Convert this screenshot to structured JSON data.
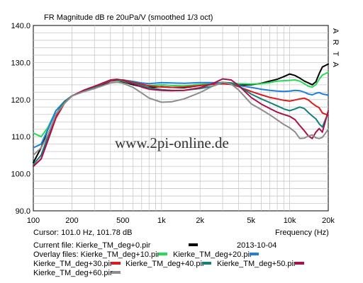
{
  "chart_data": {
    "type": "line",
    "title": "FR Magnitude dB re 20uPa/V (smoothed 1/3 oct)",
    "xlabel": "Frequency (Hz)",
    "ylabel": "",
    "xscale": "log",
    "xlim": [
      100,
      20000
    ],
    "ylim": [
      90,
      140
    ],
    "x_ticks": [
      {
        "v": 100,
        "label": "100"
      },
      {
        "v": 200,
        "label": "200"
      },
      {
        "v": 500,
        "label": "500"
      },
      {
        "v": 1000,
        "label": "1k"
      },
      {
        "v": 2000,
        "label": "2k"
      },
      {
        "v": 5000,
        "label": "5k"
      },
      {
        "v": 10000,
        "label": "10k"
      },
      {
        "v": 20000,
        "label": "20k"
      }
    ],
    "y_ticks": [
      {
        "v": 90,
        "label": "90.0"
      },
      {
        "v": 100,
        "label": "100.0"
      },
      {
        "v": 110,
        "label": "110.0"
      },
      {
        "v": 120,
        "label": "120.0"
      },
      {
        "v": 130,
        "label": "130.0"
      },
      {
        "v": 140,
        "label": "140.0"
      }
    ],
    "grid": true,
    "legend": "bottom",
    "series": [
      {
        "name": "Kierke_TM_deg+0.pir",
        "color": "#000000",
        "x": [
          100,
          115,
          130,
          150,
          175,
          200,
          250,
          300,
          350,
          400,
          450,
          500,
          600,
          700,
          800,
          1000,
          1200,
          1500,
          2000,
          2500,
          3000,
          3500,
          4000,
          5000,
          6000,
          7000,
          8000,
          9000,
          10000,
          11000,
          12000,
          13000,
          14000,
          15000,
          16000,
          17000,
          18000,
          20000
        ],
        "y": [
          103,
          107,
          112,
          117,
          119.5,
          121,
          122.5,
          123,
          124,
          125,
          125.2,
          124.8,
          124,
          123.5,
          123.3,
          123.5,
          123.3,
          123.2,
          123.8,
          124.2,
          124.3,
          124.1,
          123.9,
          124,
          124.4,
          125,
          125.5,
          126.2,
          126.9,
          126.5,
          125.8,
          125,
          124.5,
          124,
          124.8,
          127,
          128.8,
          129.6
        ]
      },
      {
        "name": "Kierke_TM_deg+10.pir",
        "color": "#22dd55",
        "x": [
          100,
          115,
          130,
          150,
          175,
          200,
          250,
          300,
          350,
          400,
          450,
          500,
          600,
          700,
          800,
          1000,
          1200,
          1500,
          2000,
          2500,
          3000,
          3500,
          4000,
          5000,
          6000,
          7000,
          8000,
          9000,
          10000,
          11000,
          12000,
          13000,
          14000,
          15000,
          16000,
          17000,
          18000,
          20000
        ],
        "y": [
          111,
          110,
          112.5,
          117,
          119.5,
          121,
          122.5,
          123.5,
          124.5,
          125.2,
          125.2,
          125,
          124.3,
          124,
          123.8,
          124,
          123.8,
          123.7,
          124.1,
          124.4,
          124.7,
          124.5,
          124.3,
          124.2,
          124.3,
          124.6,
          125,
          125.1,
          125.2,
          125.3,
          125,
          124.3,
          123.6,
          123.4,
          124,
          125.5,
          126.6,
          127.4
        ]
      },
      {
        "name": "Kierke_TM_deg+20.pir",
        "color": "#1f7fe0",
        "x": [
          100,
          115,
          130,
          150,
          175,
          200,
          250,
          300,
          350,
          400,
          450,
          500,
          600,
          700,
          800,
          1000,
          1200,
          1500,
          2000,
          2500,
          3000,
          3500,
          4000,
          5000,
          6000,
          7000,
          8000,
          9000,
          10000,
          11000,
          12000,
          13000,
          14000,
          15000,
          16000,
          17000,
          18000,
          20000
        ],
        "y": [
          107,
          108,
          112,
          117,
          119.5,
          121,
          122.5,
          123.5,
          124.5,
          125,
          125.4,
          125.3,
          124.9,
          124.5,
          124.3,
          124.6,
          124.5,
          124.4,
          124.6,
          124.6,
          124.5,
          124.2,
          123.8,
          123.3,
          122.8,
          122.5,
          122.3,
          122.2,
          122.3,
          122.5,
          122.4,
          122,
          121.5,
          121.3,
          121.7,
          121.9,
          121.5,
          121.2
        ]
      },
      {
        "name": "Kierke_TM_deg+30.pir",
        "color": "#dd1a1a",
        "x": [
          100,
          115,
          130,
          150,
          175,
          200,
          250,
          300,
          350,
          400,
          450,
          500,
          600,
          700,
          800,
          1000,
          1200,
          1500,
          2000,
          2500,
          3000,
          3500,
          4000,
          5000,
          6000,
          7000,
          8000,
          9000,
          10000,
          11000,
          12000,
          13000,
          14000,
          15000,
          16000,
          17000,
          18000,
          20000
        ],
        "y": [
          102,
          104,
          109,
          115,
          119,
          121,
          122.3,
          123.3,
          124.3,
          125,
          125.3,
          125.3,
          124.7,
          124.2,
          123.7,
          123.4,
          123.3,
          123.4,
          123.8,
          124.1,
          124.3,
          124.1,
          123.5,
          122.2,
          121.3,
          120.6,
          120.2,
          119.8,
          119.6,
          119.9,
          120.2,
          120.4,
          119.9,
          119,
          118.3,
          117.8,
          116.4,
          115.8
        ]
      },
      {
        "name": "Kierke_TM_deg+40.pir",
        "color": "#11807a",
        "x": [
          100,
          115,
          130,
          150,
          175,
          200,
          250,
          300,
          350,
          400,
          450,
          500,
          600,
          700,
          800,
          1000,
          1200,
          1500,
          2000,
          2500,
          3000,
          3500,
          4000,
          5000,
          6000,
          7000,
          8000,
          9000,
          10000,
          11000,
          12000,
          13000,
          14000,
          15000,
          16000,
          17000,
          18000,
          20000
        ],
        "y": [
          102.5,
          105,
          110,
          116,
          119.5,
          121,
          122.5,
          123.4,
          124.4,
          125.2,
          125.4,
          125.2,
          124.5,
          123.8,
          123.2,
          122.7,
          122.5,
          122.5,
          123,
          123.6,
          124.6,
          124.5,
          123.7,
          121.5,
          120.2,
          119.2,
          118.3,
          117.5,
          117,
          117.5,
          118,
          117.6,
          116.5,
          115.6,
          114.8,
          113.5,
          112.6,
          116.5
        ]
      },
      {
        "name": "Kierke_TM_deg+50.pir",
        "color": "#a8104e",
        "x": [
          100,
          115,
          130,
          150,
          175,
          200,
          250,
          300,
          350,
          400,
          450,
          500,
          600,
          700,
          800,
          1000,
          1200,
          1500,
          2000,
          2500,
          3000,
          3500,
          4000,
          5000,
          6000,
          7000,
          8000,
          9000,
          10000,
          11000,
          12000,
          13000,
          14000,
          15000,
          16000,
          17000,
          18000,
          20000
        ],
        "y": [
          102,
          104,
          109,
          115.5,
          119,
          121,
          122.6,
          123.6,
          124.5,
          125.3,
          125.5,
          125.2,
          124.3,
          123.4,
          122.8,
          122.5,
          122.4,
          122.5,
          123.2,
          124.3,
          125.6,
          125.3,
          123.8,
          120.6,
          118.8,
          117.6,
          116.6,
          116,
          115.5,
          114.6,
          113,
          111.6,
          110.2,
          109.5,
          111.2,
          112.2,
          111.2,
          117
        ]
      },
      {
        "name": "Kierke_TM_deg+60.pir",
        "color": "#8c8c8c",
        "x": [
          100,
          115,
          130,
          150,
          175,
          200,
          250,
          300,
          350,
          400,
          450,
          500,
          600,
          700,
          800,
          1000,
          1200,
          1500,
          2000,
          2500,
          3000,
          3500,
          4000,
          5000,
          6000,
          7000,
          8000,
          9000,
          10000,
          11000,
          12000,
          13000,
          14000,
          15000,
          16000,
          17000,
          18000,
          20000
        ],
        "y": [
          105,
          107,
          110.5,
          116,
          119,
          121,
          122.2,
          123,
          123.8,
          124.5,
          124.7,
          124.4,
          123.3,
          121.8,
          120.4,
          119.3,
          119.4,
          120.2,
          121.9,
          123.6,
          124.7,
          124.2,
          122.6,
          118.9,
          117.3,
          115.9,
          114.5,
          113.3,
          112.4,
          111.3,
          109.5,
          109.6,
          110.2,
          110.5,
          109.7,
          109.5,
          109.8,
          112
        ]
      }
    ],
    "annotations": {
      "arta": "A R T A",
      "watermark": "www.2pi-online.de",
      "cursor": "Cursor: 101.0 Hz, 101.78 dB",
      "date": "2013-10-04",
      "current_file_label": "Current file: Kierke_TM_deg+0.pir",
      "overlay_label": "Overlay files: Kierke_TM_deg+10.pir",
      "extra_line": "Kierke_TM_deg+60.pir"
    }
  }
}
